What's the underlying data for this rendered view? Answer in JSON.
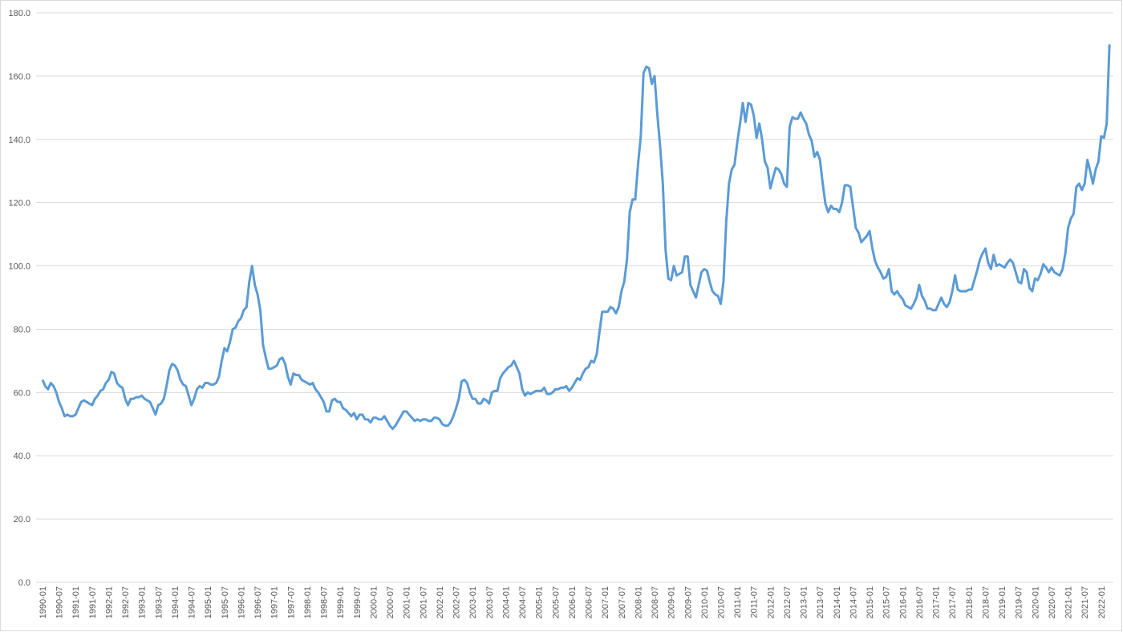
{
  "chart_data": {
    "type": "line",
    "ylim": [
      0,
      180
    ],
    "yticks": [
      {
        "value": 0,
        "label": "0.0"
      },
      {
        "value": 20,
        "label": "20.0"
      },
      {
        "value": 40,
        "label": "40.0"
      },
      {
        "value": 60,
        "label": "60.0"
      },
      {
        "value": 80,
        "label": "80.0"
      },
      {
        "value": 100,
        "label": "100.0"
      },
      {
        "value": 120,
        "label": "120.0"
      },
      {
        "value": 140,
        "label": "140.0"
      },
      {
        "value": 160,
        "label": "160.0"
      },
      {
        "value": 180,
        "label": "180.0"
      }
    ],
    "grid": true,
    "categories": [
      "1990-01",
      null,
      null,
      null,
      null,
      null,
      "1990-07",
      null,
      null,
      null,
      null,
      null,
      "1991-01",
      null,
      null,
      null,
      null,
      null,
      "1991-07",
      null,
      null,
      null,
      null,
      null,
      "1992-01",
      null,
      null,
      null,
      null,
      null,
      "1992-07",
      null,
      null,
      null,
      null,
      null,
      "1993-01",
      null,
      null,
      null,
      null,
      null,
      "1993-07",
      null,
      null,
      null,
      null,
      null,
      "1994-01",
      null,
      null,
      null,
      null,
      null,
      "1994-07",
      null,
      null,
      null,
      null,
      null,
      "1995-01",
      null,
      null,
      null,
      null,
      null,
      "1995-07",
      null,
      null,
      null,
      null,
      null,
      "1996-01",
      null,
      null,
      null,
      null,
      null,
      "1996-07",
      null,
      null,
      null,
      null,
      null,
      "1997-01",
      null,
      null,
      null,
      null,
      null,
      "1997-07",
      null,
      null,
      null,
      null,
      null,
      "1998-01",
      null,
      null,
      null,
      null,
      null,
      "1998-07",
      null,
      null,
      null,
      null,
      null,
      "1999-01",
      null,
      null,
      null,
      null,
      null,
      "1999-07",
      null,
      null,
      null,
      null,
      null,
      "2000-01",
      null,
      null,
      null,
      null,
      null,
      "2000-07",
      null,
      null,
      null,
      null,
      null,
      "2001-01",
      null,
      null,
      null,
      null,
      null,
      "2001-07",
      null,
      null,
      null,
      null,
      null,
      "2002-01",
      null,
      null,
      null,
      null,
      null,
      "2002-07",
      null,
      null,
      null,
      null,
      null,
      "2003-01",
      null,
      null,
      null,
      null,
      null,
      "2003-07",
      null,
      null,
      null,
      null,
      null,
      "2004-01",
      null,
      null,
      null,
      null,
      null,
      "2004-07",
      null,
      null,
      null,
      null,
      null,
      "2005-01",
      null,
      null,
      null,
      null,
      null,
      "2005-07",
      null,
      null,
      null,
      null,
      null,
      "2006-01",
      null,
      null,
      null,
      null,
      null,
      "2006-07",
      null,
      null,
      null,
      null,
      null,
      "2007-01",
      null,
      null,
      null,
      null,
      null,
      "2007-07",
      null,
      null,
      null,
      null,
      null,
      "2008-01",
      null,
      null,
      null,
      null,
      null,
      "2008-07",
      null,
      null,
      null,
      null,
      null,
      "2009-01",
      null,
      null,
      null,
      null,
      null,
      "2009-07",
      null,
      null,
      null,
      null,
      null,
      "2010-01",
      null,
      null,
      null,
      null,
      null,
      "2010-07",
      null,
      null,
      null,
      null,
      null,
      "2011-01",
      null,
      null,
      null,
      null,
      null,
      "2011-07",
      null,
      null,
      null,
      null,
      null,
      "2012-01",
      null,
      null,
      null,
      null,
      null,
      "2012-07",
      null,
      null,
      null,
      null,
      null,
      "2013-01",
      null,
      null,
      null,
      null,
      null,
      "2013-07",
      null,
      null,
      null,
      null,
      null,
      "2014-01",
      null,
      null,
      null,
      null,
      null,
      "2014-07",
      null,
      null,
      null,
      null,
      null,
      "2015-01",
      null,
      null,
      null,
      null,
      null,
      "2015-07",
      null,
      null,
      null,
      null,
      null,
      "2016-01",
      null,
      null,
      null,
      null,
      null,
      "2016-07",
      null,
      null,
      null,
      null,
      null,
      "2017-01",
      null,
      null,
      null,
      null,
      null,
      "2017-07",
      null,
      null,
      null,
      null,
      null,
      "2018-01",
      null,
      null,
      null,
      null,
      null,
      "2018-07",
      null,
      null,
      null,
      null,
      null,
      "2019-01",
      null,
      null,
      null,
      null,
      null,
      "2019-07",
      null,
      null,
      null,
      null,
      null,
      "2020-01",
      null,
      null,
      null,
      null,
      null,
      "2020-07",
      null,
      null,
      null,
      null,
      null,
      "2021-01",
      null,
      null,
      null,
      null,
      null,
      "2021-07",
      null,
      null,
      null,
      null,
      null,
      "2022-01",
      null,
      null,
      null
    ],
    "color": "#5b9bd5",
    "values": [
      64,
      62,
      61,
      63,
      62,
      60,
      57,
      55,
      52.5,
      53,
      52.5,
      52.5,
      53,
      55,
      57,
      57.5,
      57,
      56.5,
      56,
      58,
      59,
      60.5,
      61,
      63,
      64,
      66.5,
      66,
      63,
      62,
      61.5,
      58,
      56,
      58,
      58,
      58.5,
      58.5,
      59,
      58,
      57.5,
      57,
      55,
      53,
      56,
      56.5,
      58,
      62,
      67,
      69,
      68.5,
      67,
      64,
      62.5,
      62,
      59,
      56,
      58,
      61,
      62,
      61.5,
      63,
      63,
      62.5,
      62.5,
      63,
      65,
      70,
      74,
      73,
      76,
      80,
      80.5,
      82.5,
      83.5,
      86,
      87,
      95,
      100,
      94,
      91,
      86,
      75,
      71,
      67.5,
      67.5,
      68,
      68.5,
      70.5,
      71,
      69,
      65,
      62.5,
      66,
      65.5,
      65.5,
      64,
      63.5,
      63,
      62.5,
      63,
      61,
      60,
      58.5,
      57,
      54,
      54,
      57.5,
      58,
      57,
      57,
      55,
      54.5,
      53.5,
      52.5,
      53.5,
      51.5,
      53,
      53,
      51.5,
      51.5,
      50.5,
      52,
      52,
      51.5,
      51.5,
      52.5,
      51,
      49.5,
      48.5,
      49.5,
      51,
      52.5,
      54,
      54,
      53,
      52,
      51,
      51.5,
      51,
      51.5,
      51.5,
      51,
      51,
      52,
      52,
      51.5,
      50,
      49.5,
      49.5,
      50.5,
      52.5,
      55,
      58,
      63.5,
      64,
      63,
      60,
      58,
      58,
      56.5,
      56.5,
      58,
      57.5,
      56.5,
      60,
      60.5,
      60.5,
      64.5,
      66,
      67,
      68,
      68.5,
      70,
      68,
      66,
      61,
      59,
      60,
      59.5,
      60,
      60.5,
      60.5,
      60.5,
      61.5,
      59.5,
      59.5,
      60,
      61,
      61,
      61.5,
      61.5,
      62,
      60.5,
      61.5,
      63,
      64.5,
      64,
      66,
      67.5,
      68,
      70,
      69.5,
      72,
      79,
      85.5,
      85.5,
      85.5,
      87,
      86.5,
      85,
      87,
      92,
      95,
      102,
      117,
      121,
      121,
      132,
      141,
      161,
      163,
      162.5,
      157.5,
      160,
      148,
      138,
      126,
      105,
      96,
      95.5,
      100,
      97,
      97.5,
      98,
      103,
      103,
      94,
      92,
      90,
      94,
      98,
      99,
      98.5,
      95,
      92,
      91,
      90.5,
      88,
      95,
      114,
      126,
      130.5,
      132,
      139,
      145,
      151.5,
      145.5,
      151.5,
      151,
      147.5,
      140.5,
      145,
      140,
      133,
      131,
      124.5,
      128,
      131,
      130.5,
      129,
      126,
      125,
      144,
      147,
      146.5,
      146.5,
      148.5,
      146.5,
      145,
      141.5,
      139.5,
      134.5,
      136,
      133.5,
      126,
      119.5,
      117,
      119,
      118,
      118,
      117,
      120,
      125.5,
      125.5,
      125,
      118.5,
      112,
      110.5,
      107.5,
      108.5,
      109.5,
      111,
      105.5,
      101.5,
      99.5,
      98,
      96,
      96.5,
      99,
      92,
      91,
      92,
      90.5,
      89.5,
      87.5,
      87,
      86.5,
      88,
      90,
      94,
      90.5,
      89,
      86.5,
      86.5,
      86,
      86,
      88,
      90,
      88,
      87,
      88.5,
      92,
      97,
      92.5,
      92,
      92,
      92,
      92.5,
      92.5,
      95.5,
      98.5,
      102,
      104,
      105.5,
      101,
      99,
      103.5,
      100,
      100.5,
      100,
      99.5,
      101,
      102,
      101,
      98,
      95,
      94.5,
      99,
      98,
      93,
      92,
      96,
      95.5,
      97.5,
      100.5,
      99.5,
      98,
      99.5,
      98,
      97.5,
      97,
      99,
      104,
      112,
      115,
      116.5,
      125,
      126,
      124,
      126,
      133.5,
      130,
      126,
      130.5,
      133,
      141,
      140.5,
      145,
      170
    ]
  }
}
